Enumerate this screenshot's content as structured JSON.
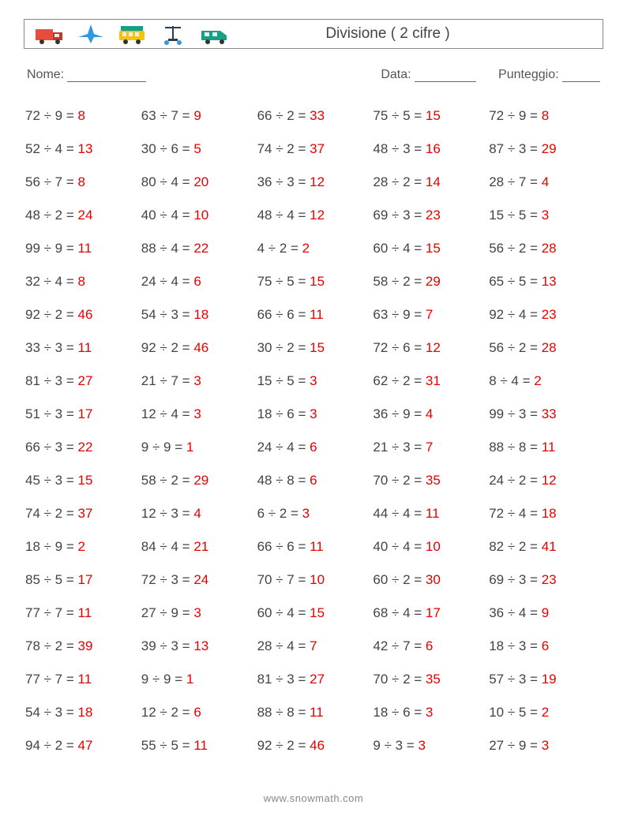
{
  "title": "Divisione ( 2 cifre )",
  "meta": {
    "name_label": "Nome:",
    "date_label": "Data:",
    "score_label": "Punteggio:"
  },
  "footer": "www.snowmath.com",
  "icons": {
    "truck_color": "#e74c3c",
    "plane_color": "#3498db",
    "bus_color": "#f1c40f",
    "scooter_color": "#2c3e50",
    "van_color": "#16a085"
  },
  "style": {
    "text_color": "#444444",
    "answer_color": "#e60000",
    "border_color": "#888888",
    "fontsize_cell": 17,
    "fontsize_title": 19,
    "columns": 5,
    "rows": 20,
    "background": "#ffffff"
  },
  "problems": [
    [
      [
        72,
        9,
        8
      ],
      [
        63,
        7,
        9
      ],
      [
        66,
        2,
        33
      ],
      [
        75,
        5,
        15
      ],
      [
        72,
        9,
        8
      ]
    ],
    [
      [
        52,
        4,
        13
      ],
      [
        30,
        6,
        5
      ],
      [
        74,
        2,
        37
      ],
      [
        48,
        3,
        16
      ],
      [
        87,
        3,
        29
      ]
    ],
    [
      [
        56,
        7,
        8
      ],
      [
        80,
        4,
        20
      ],
      [
        36,
        3,
        12
      ],
      [
        28,
        2,
        14
      ],
      [
        28,
        7,
        4
      ]
    ],
    [
      [
        48,
        2,
        24
      ],
      [
        40,
        4,
        10
      ],
      [
        48,
        4,
        12
      ],
      [
        69,
        3,
        23
      ],
      [
        15,
        5,
        3
      ]
    ],
    [
      [
        99,
        9,
        11
      ],
      [
        88,
        4,
        22
      ],
      [
        4,
        2,
        2
      ],
      [
        60,
        4,
        15
      ],
      [
        56,
        2,
        28
      ]
    ],
    [
      [
        32,
        4,
        8
      ],
      [
        24,
        4,
        6
      ],
      [
        75,
        5,
        15
      ],
      [
        58,
        2,
        29
      ],
      [
        65,
        5,
        13
      ]
    ],
    [
      [
        92,
        2,
        46
      ],
      [
        54,
        3,
        18
      ],
      [
        66,
        6,
        11
      ],
      [
        63,
        9,
        7
      ],
      [
        92,
        4,
        23
      ]
    ],
    [
      [
        33,
        3,
        11
      ],
      [
        92,
        2,
        46
      ],
      [
        30,
        2,
        15
      ],
      [
        72,
        6,
        12
      ],
      [
        56,
        2,
        28
      ]
    ],
    [
      [
        81,
        3,
        27
      ],
      [
        21,
        7,
        3
      ],
      [
        15,
        5,
        3
      ],
      [
        62,
        2,
        31
      ],
      [
        8,
        4,
        2
      ]
    ],
    [
      [
        51,
        3,
        17
      ],
      [
        12,
        4,
        3
      ],
      [
        18,
        6,
        3
      ],
      [
        36,
        9,
        4
      ],
      [
        99,
        3,
        33
      ]
    ],
    [
      [
        66,
        3,
        22
      ],
      [
        9,
        9,
        1
      ],
      [
        24,
        4,
        6
      ],
      [
        21,
        3,
        7
      ],
      [
        88,
        8,
        11
      ]
    ],
    [
      [
        45,
        3,
        15
      ],
      [
        58,
        2,
        29
      ],
      [
        48,
        8,
        6
      ],
      [
        70,
        2,
        35
      ],
      [
        24,
        2,
        12
      ]
    ],
    [
      [
        74,
        2,
        37
      ],
      [
        12,
        3,
        4
      ],
      [
        6,
        2,
        3
      ],
      [
        44,
        4,
        11
      ],
      [
        72,
        4,
        18
      ]
    ],
    [
      [
        18,
        9,
        2
      ],
      [
        84,
        4,
        21
      ],
      [
        66,
        6,
        11
      ],
      [
        40,
        4,
        10
      ],
      [
        82,
        2,
        41
      ]
    ],
    [
      [
        85,
        5,
        17
      ],
      [
        72,
        3,
        24
      ],
      [
        70,
        7,
        10
      ],
      [
        60,
        2,
        30
      ],
      [
        69,
        3,
        23
      ]
    ],
    [
      [
        77,
        7,
        11
      ],
      [
        27,
        9,
        3
      ],
      [
        60,
        4,
        15
      ],
      [
        68,
        4,
        17
      ],
      [
        36,
        4,
        9
      ]
    ],
    [
      [
        78,
        2,
        39
      ],
      [
        39,
        3,
        13
      ],
      [
        28,
        4,
        7
      ],
      [
        42,
        7,
        6
      ],
      [
        18,
        3,
        6
      ]
    ],
    [
      [
        77,
        7,
        11
      ],
      [
        9,
        9,
        1
      ],
      [
        81,
        3,
        27
      ],
      [
        70,
        2,
        35
      ],
      [
        57,
        3,
        19
      ]
    ],
    [
      [
        54,
        3,
        18
      ],
      [
        12,
        2,
        6
      ],
      [
        88,
        8,
        11
      ],
      [
        18,
        6,
        3
      ],
      [
        10,
        5,
        2
      ]
    ],
    [
      [
        94,
        2,
        47
      ],
      [
        55,
        5,
        11
      ],
      [
        92,
        2,
        46
      ],
      [
        9,
        3,
        3
      ],
      [
        27,
        9,
        3
      ]
    ]
  ]
}
